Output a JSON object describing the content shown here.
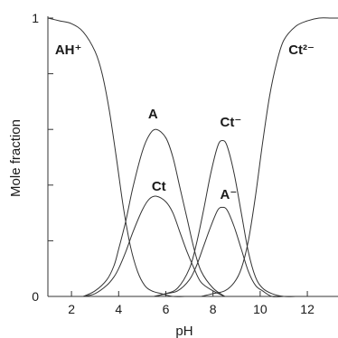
{
  "chart_data": {
    "type": "line",
    "title": "",
    "xlabel": "pH",
    "ylabel": "Mole fraction",
    "xlim": [
      1,
      13.3
    ],
    "ylim": [
      0,
      1
    ],
    "grid": false,
    "xticks": [
      2,
      4,
      6,
      8,
      10,
      12
    ],
    "xtick_labels": [
      "2",
      "4",
      "6",
      "8",
      "10",
      "12"
    ],
    "yticks": [
      0,
      0.2,
      0.4,
      0.6,
      0.8,
      1
    ],
    "ytick_labels": [
      "0",
      "",
      "",
      "",
      "",
      "1"
    ],
    "line_color": "#333333",
    "series": [
      {
        "name": "AH⁺",
        "x": [
          1.0,
          1.5,
          2.0,
          2.5,
          3.0,
          3.3,
          3.6,
          3.9,
          4.2,
          4.5,
          4.8,
          5.1,
          5.4,
          5.8,
          6.3,
          6.8
        ],
        "y": [
          1.0,
          0.99,
          0.98,
          0.95,
          0.88,
          0.8,
          0.67,
          0.5,
          0.32,
          0.18,
          0.09,
          0.04,
          0.02,
          0.01,
          0.0,
          0.0
        ]
      },
      {
        "name": "A",
        "x": [
          2.5,
          3.0,
          3.5,
          3.8,
          4.0,
          4.3,
          4.6,
          5.0,
          5.3,
          5.6,
          6.0,
          6.3,
          6.6,
          6.9,
          7.2,
          7.5,
          8.0,
          8.5
        ],
        "y": [
          0.0,
          0.02,
          0.06,
          0.11,
          0.17,
          0.27,
          0.39,
          0.52,
          0.58,
          0.6,
          0.57,
          0.5,
          0.39,
          0.28,
          0.17,
          0.09,
          0.03,
          0.0
        ]
      },
      {
        "name": "Ct",
        "x": [
          2.5,
          3.0,
          3.5,
          3.8,
          4.0,
          4.3,
          4.6,
          5.0,
          5.3,
          5.6,
          6.0,
          6.3,
          6.6,
          6.9,
          7.2,
          7.5,
          8.0,
          8.5
        ],
        "y": [
          0.0,
          0.01,
          0.04,
          0.07,
          0.1,
          0.16,
          0.23,
          0.31,
          0.35,
          0.36,
          0.34,
          0.3,
          0.23,
          0.16,
          0.1,
          0.05,
          0.02,
          0.0
        ]
      },
      {
        "name": "Ct⁻",
        "x": [
          5.5,
          6.0,
          6.5,
          7.0,
          7.3,
          7.6,
          7.9,
          8.2,
          8.4,
          8.6,
          8.9,
          9.2,
          9.5,
          9.8,
          10.1,
          10.5,
          11.0,
          11.5
        ],
        "y": [
          0.0,
          0.01,
          0.03,
          0.1,
          0.19,
          0.31,
          0.44,
          0.54,
          0.56,
          0.54,
          0.44,
          0.3,
          0.16,
          0.07,
          0.03,
          0.01,
          0.0,
          0.0
        ]
      },
      {
        "name": "A⁻",
        "x": [
          5.5,
          6.0,
          6.5,
          7.0,
          7.3,
          7.6,
          7.9,
          8.2,
          8.4,
          8.6,
          8.9,
          9.2,
          9.5,
          9.8,
          10.1,
          10.5,
          11.0,
          11.5
        ],
        "y": [
          0.0,
          0.01,
          0.02,
          0.06,
          0.11,
          0.18,
          0.25,
          0.31,
          0.32,
          0.31,
          0.25,
          0.17,
          0.09,
          0.04,
          0.02,
          0.0,
          0.0,
          0.0
        ]
      },
      {
        "name": "Ct²⁻",
        "x": [
          7.5,
          8.0,
          8.5,
          8.9,
          9.2,
          9.5,
          9.8,
          10.1,
          10.4,
          10.7,
          11.0,
          11.5,
          12.0,
          12.5,
          13.0,
          13.3
        ],
        "y": [
          0.0,
          0.01,
          0.02,
          0.05,
          0.1,
          0.2,
          0.36,
          0.55,
          0.72,
          0.84,
          0.92,
          0.97,
          0.99,
          1.0,
          1.0,
          1.0
        ]
      }
    ],
    "series_labels": [
      {
        "text": "AH⁺",
        "x": 1.3,
        "y": 0.87
      },
      {
        "text": "A",
        "x": 5.25,
        "y": 0.64
      },
      {
        "text": "Ct",
        "x": 5.4,
        "y": 0.38
      },
      {
        "text": "Ct⁻",
        "x": 8.3,
        "y": 0.61
      },
      {
        "text": "A⁻",
        "x": 8.3,
        "y": 0.35
      },
      {
        "text": "Ct²⁻",
        "x": 11.2,
        "y": 0.87
      }
    ]
  }
}
